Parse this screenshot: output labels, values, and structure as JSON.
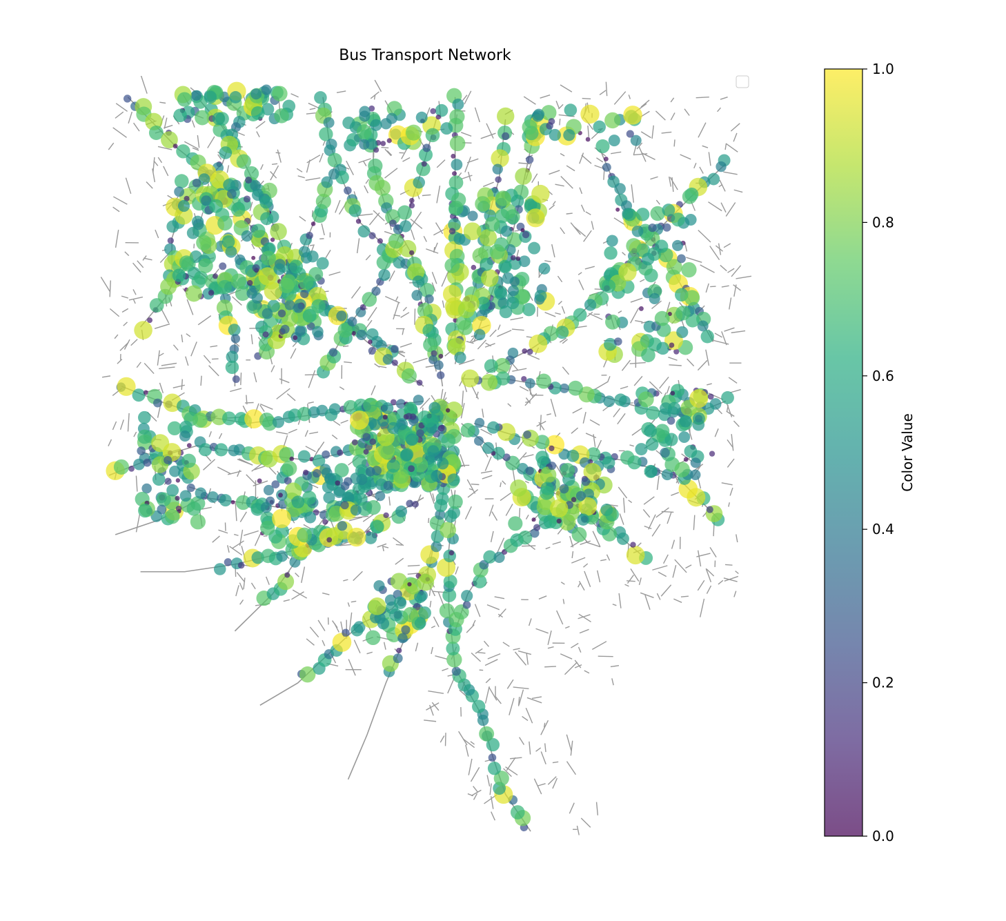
{
  "chart_data": {
    "type": "scatter",
    "title": "Bus Transport Network",
    "xlabel": "",
    "ylabel": "",
    "axes_visible": false,
    "legend": {
      "placement": "top-right",
      "entries": []
    },
    "colorbar": {
      "label": "Color Value",
      "colormap": "viridis",
      "range": [
        0.0,
        1.0
      ],
      "ticks": [
        0.0,
        0.2,
        0.4,
        0.6,
        0.8,
        1.0
      ],
      "tick_labels": [
        "0.0",
        "0.2",
        "0.4",
        "0.6",
        "0.8",
        "1.0"
      ],
      "alpha": 0.7
    },
    "edge_color": "#999999",
    "marker_size_encodes_color_value": true,
    "routes": [
      [
        [
          0.03,
          0.99
        ],
        [
          0.11,
          0.92
        ],
        [
          0.17,
          0.88
        ],
        [
          0.23,
          0.81
        ],
        [
          0.29,
          0.74
        ],
        [
          0.37,
          0.69
        ],
        [
          0.47,
          0.64
        ]
      ],
      [
        [
          0.14,
          0.99
        ],
        [
          0.18,
          0.95
        ],
        [
          0.21,
          0.91
        ],
        [
          0.25,
          0.84
        ],
        [
          0.28,
          0.78
        ],
        [
          0.33,
          0.72
        ],
        [
          0.41,
          0.66
        ],
        [
          0.5,
          0.6
        ]
      ],
      [
        [
          0.16,
          1.0
        ],
        [
          0.21,
          0.97
        ],
        [
          0.18,
          0.9
        ],
        [
          0.12,
          0.85
        ],
        [
          0.1,
          0.8
        ],
        [
          0.1,
          0.74
        ]
      ],
      [
        [
          0.34,
          0.99
        ],
        [
          0.35,
          0.93
        ],
        [
          0.37,
          0.88
        ],
        [
          0.4,
          0.82
        ],
        [
          0.45,
          0.78
        ],
        [
          0.5,
          0.74
        ],
        [
          0.52,
          0.66
        ],
        [
          0.53,
          0.6
        ]
      ],
      [
        [
          0.42,
          0.97
        ],
        [
          0.42,
          0.9
        ],
        [
          0.44,
          0.84
        ],
        [
          0.48,
          0.78
        ],
        [
          0.5,
          0.7
        ],
        [
          0.52,
          0.62
        ]
      ],
      [
        [
          0.55,
          0.99
        ],
        [
          0.55,
          0.9
        ],
        [
          0.55,
          0.8
        ],
        [
          0.55,
          0.72
        ],
        [
          0.55,
          0.64
        ]
      ],
      [
        [
          0.63,
          0.96
        ],
        [
          0.62,
          0.88
        ],
        [
          0.6,
          0.82
        ],
        [
          0.59,
          0.76
        ],
        [
          0.57,
          0.7
        ],
        [
          0.55,
          0.63
        ]
      ],
      [
        [
          0.68,
          0.96
        ],
        [
          0.66,
          0.88
        ],
        [
          0.64,
          0.8
        ],
        [
          0.61,
          0.73
        ],
        [
          0.58,
          0.66
        ]
      ],
      [
        [
          0.98,
          0.9
        ],
        [
          0.93,
          0.86
        ],
        [
          0.86,
          0.8
        ],
        [
          0.8,
          0.74
        ],
        [
          0.74,
          0.69
        ],
        [
          0.67,
          0.65
        ],
        [
          0.6,
          0.62
        ]
      ],
      [
        [
          0.78,
          0.92
        ],
        [
          0.82,
          0.84
        ],
        [
          0.88,
          0.78
        ],
        [
          0.92,
          0.72
        ],
        [
          0.96,
          0.66
        ]
      ],
      [
        [
          0.98,
          0.58
        ],
        [
          0.92,
          0.56
        ],
        [
          0.85,
          0.57
        ],
        [
          0.77,
          0.59
        ],
        [
          0.7,
          0.6
        ],
        [
          0.63,
          0.61
        ],
        [
          0.56,
          0.61
        ]
      ],
      [
        [
          0.97,
          0.42
        ],
        [
          0.9,
          0.48
        ],
        [
          0.82,
          0.5
        ],
        [
          0.74,
          0.51
        ],
        [
          0.66,
          0.53
        ],
        [
          0.58,
          0.55
        ]
      ],
      [
        [
          0.85,
          0.37
        ],
        [
          0.78,
          0.42
        ],
        [
          0.7,
          0.46
        ],
        [
          0.63,
          0.5
        ],
        [
          0.56,
          0.55
        ]
      ],
      [
        [
          0.02,
          0.6
        ],
        [
          0.08,
          0.58
        ],
        [
          0.15,
          0.56
        ],
        [
          0.22,
          0.55
        ],
        [
          0.31,
          0.56
        ],
        [
          0.4,
          0.57
        ],
        [
          0.5,
          0.58
        ]
      ],
      [
        [
          0.0,
          0.48
        ],
        [
          0.06,
          0.5
        ],
        [
          0.14,
          0.52
        ],
        [
          0.22,
          0.51
        ],
        [
          0.32,
          0.5
        ],
        [
          0.42,
          0.52
        ],
        [
          0.52,
          0.55
        ]
      ],
      [
        [
          0.01,
          0.4
        ],
        [
          0.08,
          0.42
        ],
        [
          0.15,
          0.45
        ],
        [
          0.24,
          0.44
        ],
        [
          0.34,
          0.43
        ],
        [
          0.44,
          0.46
        ],
        [
          0.53,
          0.52
        ]
      ],
      [
        [
          0.2,
          0.27
        ],
        [
          0.26,
          0.32
        ],
        [
          0.31,
          0.38
        ],
        [
          0.37,
          0.44
        ],
        [
          0.44,
          0.49
        ],
        [
          0.52,
          0.53
        ]
      ],
      [
        [
          0.05,
          0.68
        ],
        [
          0.09,
          0.72
        ],
        [
          0.12,
          0.77
        ],
        [
          0.18,
          0.73
        ],
        [
          0.2,
          0.66
        ],
        [
          0.2,
          0.6
        ]
      ],
      [
        [
          0.38,
          0.07
        ],
        [
          0.41,
          0.13
        ],
        [
          0.44,
          0.2
        ],
        [
          0.48,
          0.28
        ],
        [
          0.51,
          0.36
        ],
        [
          0.53,
          0.45
        ],
        [
          0.54,
          0.52
        ]
      ],
      [
        [
          0.67,
          0.0
        ],
        [
          0.63,
          0.05
        ],
        [
          0.61,
          0.1
        ],
        [
          0.59,
          0.16
        ],
        [
          0.55,
          0.22
        ],
        [
          0.54,
          0.3
        ],
        [
          0.54,
          0.38
        ],
        [
          0.55,
          0.46
        ]
      ],
      [
        [
          0.55,
          0.27
        ],
        [
          0.57,
          0.32
        ],
        [
          0.6,
          0.36
        ],
        [
          0.66,
          0.4
        ],
        [
          0.72,
          0.43
        ],
        [
          0.76,
          0.39
        ]
      ],
      [
        [
          0.24,
          0.17
        ],
        [
          0.3,
          0.2
        ],
        [
          0.35,
          0.24
        ],
        [
          0.4,
          0.28
        ],
        [
          0.45,
          0.3
        ],
        [
          0.5,
          0.35
        ]
      ],
      [
        [
          0.05,
          0.35
        ],
        [
          0.12,
          0.35
        ],
        [
          0.2,
          0.36
        ],
        [
          0.3,
          0.38
        ],
        [
          0.4,
          0.4
        ],
        [
          0.5,
          0.45
        ]
      ],
      [
        [
          0.34,
          0.62
        ],
        [
          0.38,
          0.68
        ],
        [
          0.43,
          0.74
        ],
        [
          0.47,
          0.82
        ],
        [
          0.5,
          0.9
        ],
        [
          0.52,
          0.96
        ]
      ],
      [
        [
          0.24,
          0.64
        ],
        [
          0.28,
          0.7
        ],
        [
          0.3,
          0.77
        ],
        [
          0.33,
          0.83
        ],
        [
          0.36,
          0.9
        ]
      ]
    ],
    "clusters": [
      [
        0.47,
        0.52,
        0.16,
        0.11,
        240
      ],
      [
        0.18,
        0.8,
        0.16,
        0.16,
        110
      ],
      [
        0.28,
        0.72,
        0.12,
        0.12,
        80
      ],
      [
        0.62,
        0.78,
        0.15,
        0.16,
        90
      ],
      [
        0.33,
        0.44,
        0.2,
        0.1,
        90
      ],
      [
        0.72,
        0.46,
        0.16,
        0.09,
        80
      ],
      [
        0.86,
        0.74,
        0.14,
        0.2,
        80
      ],
      [
        0.9,
        0.54,
        0.12,
        0.12,
        50
      ],
      [
        0.1,
        0.48,
        0.1,
        0.16,
        60
      ],
      [
        0.2,
        0.98,
        0.18,
        0.04,
        40
      ],
      [
        0.46,
        0.95,
        0.16,
        0.05,
        35
      ],
      [
        0.75,
        0.95,
        0.18,
        0.05,
        30
      ],
      [
        0.38,
        0.12,
        0.12,
        0.1,
        35
      ],
      [
        0.46,
        0.3,
        0.1,
        0.08,
        35
      ]
    ],
    "seed": 20240611
  }
}
